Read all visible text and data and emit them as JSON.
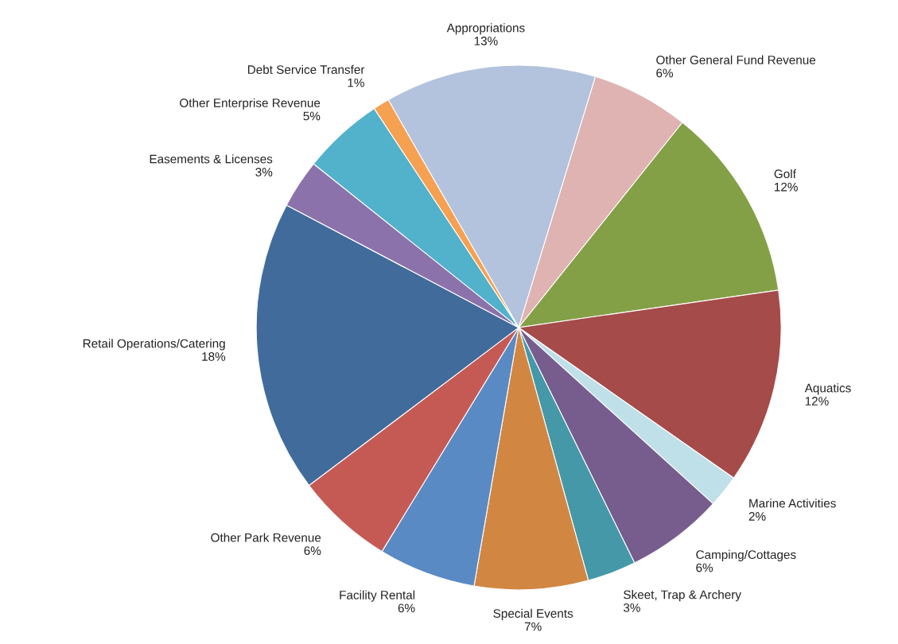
{
  "chart_data": {
    "type": "pie",
    "categories": [
      "Appropriations",
      "Other General Fund Revenue",
      "Golf",
      "Aquatics",
      "Marine Activities",
      "Camping/Cottages",
      "Skeet, Trap & Archery",
      "Special Events",
      "Facility Rental",
      "Other Park Revenue",
      "Retail Operations/Catering",
      "Easements & Licenses",
      "Other Enterprise Revenue",
      "Debt Service Transfer"
    ],
    "values": [
      13,
      6,
      12,
      12,
      2,
      6,
      3,
      7,
      6,
      6,
      18,
      3,
      5,
      1
    ],
    "value_labels": [
      "13%",
      "6%",
      "12%",
      "12%",
      "2%",
      "6%",
      "3%",
      "7%",
      "6%",
      "6%",
      "18%",
      "3%",
      "5%",
      "1%"
    ],
    "colors": [
      "#b3c3de",
      "#dfb3b2",
      "#83a046",
      "#a54b4a",
      "#bfe0e8",
      "#765d8e",
      "#4598a8",
      "#d18742",
      "#5a8ac4",
      "#c55a55",
      "#416b9b",
      "#8b72ab",
      "#52b1cb",
      "#f6a051"
    ],
    "legend": false
  }
}
